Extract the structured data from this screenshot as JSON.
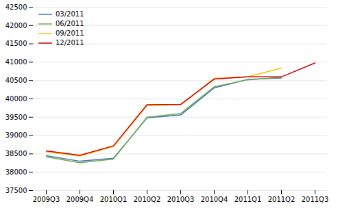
{
  "chart_data": {
    "type": "line",
    "categories": [
      "2009Q3",
      "2009Q4",
      "2010Q1",
      "2010Q2",
      "2010Q3",
      "2010Q4",
      "2011Q1",
      "2011Q2",
      "2011Q3"
    ],
    "series": [
      {
        "name": "03/2011",
        "color": "#4472C4",
        "values": [
          38450,
          38300,
          38380,
          39480,
          39560,
          40300,
          40530,
          40570,
          null
        ]
      },
      {
        "name": "06/2011",
        "color": "#70AD47",
        "values": [
          38420,
          38260,
          38360,
          39500,
          39600,
          40330,
          40520,
          40590,
          null
        ]
      },
      {
        "name": "09/2011",
        "color": "#FFC000",
        "values": [
          38560,
          38440,
          38700,
          39820,
          39840,
          40560,
          40600,
          40840,
          null
        ]
      },
      {
        "name": "12/2011",
        "color": "#CC0000",
        "values": [
          38580,
          38460,
          38720,
          39840,
          39850,
          40540,
          40600,
          40600,
          40980
        ]
      }
    ],
    "ylim": [
      37500,
      42500
    ],
    "yticks": [
      37500,
      38000,
      38500,
      39000,
      39500,
      40000,
      40500,
      41000,
      41500,
      42000,
      42500
    ],
    "grid": true,
    "legend": "upper left"
  }
}
